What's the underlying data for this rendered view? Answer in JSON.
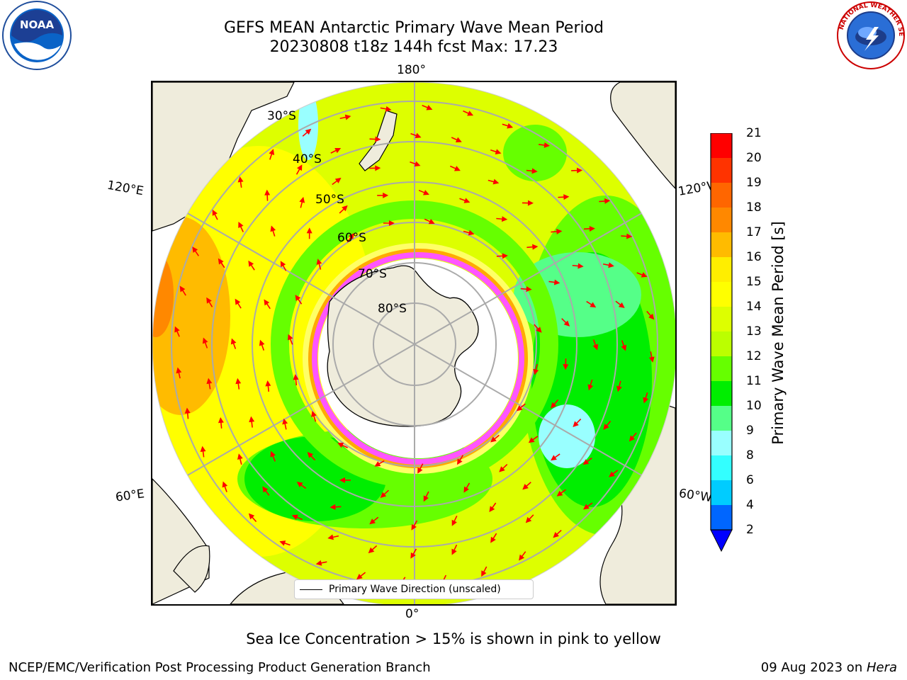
{
  "header": {
    "title_line1": "GEFS MEAN Antarctic Primary Wave Mean Period",
    "title_line2": "20230808 t18z 144h fcst   Max: 17.23"
  },
  "logos": {
    "noaa_text": "NOAA",
    "nws_text": "NATIONAL WEATHER SERVICE"
  },
  "map": {
    "projection": "south-polar-stereographic",
    "longitude_labels": {
      "top": "180°",
      "bottom": "0°",
      "left_upper": "120°E",
      "left_lower": "60°E",
      "right_upper": "120°W",
      "right_lower": "60°W"
    },
    "latitude_labels": [
      "30°S",
      "40°S",
      "50°S",
      "60°S",
      "70°S",
      "80°S"
    ],
    "legend_label": "Primary Wave Direction (unscaled)",
    "land_color": "#efecdc",
    "arrow_color": "#ff0000",
    "sea_ice_colors": [
      "#ff55ff",
      "#ffaa00",
      "#ffff66"
    ]
  },
  "colorbar": {
    "label": "Primary Wave Mean Period [s]",
    "ticks": [
      "2",
      "4",
      "6",
      "8",
      "9",
      "10",
      "11",
      "12",
      "13",
      "14",
      "15",
      "16",
      "17",
      "18",
      "19",
      "20",
      "21"
    ],
    "colors": [
      "#0066ff",
      "#00ccff",
      "#33ffff",
      "#99ffff",
      "#55ff88",
      "#00ee00",
      "#66ff00",
      "#bbff00",
      "#ddff00",
      "#ffff00",
      "#ffee00",
      "#ffbb00",
      "#ff8800",
      "#ff6600",
      "#ff3300",
      "#ff0000"
    ],
    "extend_color": "#0000ff"
  },
  "notes": {
    "sea_ice": "Sea Ice Concentration > 15% is shown in pink to yellow"
  },
  "footer": {
    "left": "NCEP/EMC/Verification Post Processing Product Generation Branch",
    "right_prefix": "09 Aug 2023 on ",
    "right_host": "Hera"
  }
}
